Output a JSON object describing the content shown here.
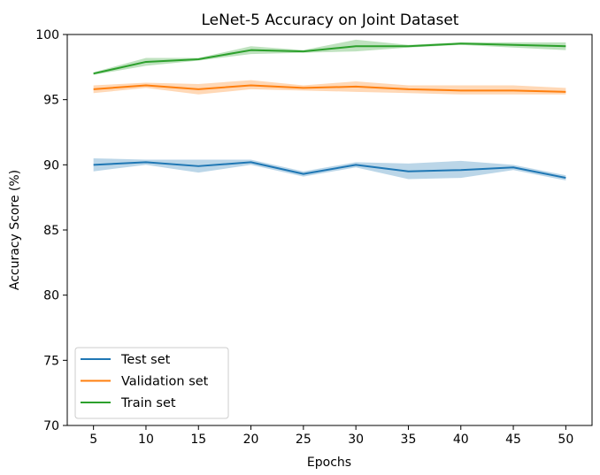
{
  "chart_data": {
    "type": "line",
    "title": "LeNet-5 Accuracy on Joint Dataset",
    "xlabel": "Epochs",
    "ylabel": "Accuracy Score (%)",
    "x": [
      5,
      10,
      15,
      20,
      25,
      30,
      35,
      40,
      45,
      50
    ],
    "xlim": [
      2.5,
      52.5
    ],
    "ylim": [
      70,
      100
    ],
    "xticks": [
      5,
      10,
      15,
      20,
      25,
      30,
      35,
      40,
      45,
      50
    ],
    "yticks": [
      70,
      75,
      80,
      85,
      90,
      95,
      100
    ],
    "grid": false,
    "legend_position": "lower-left",
    "series": [
      {
        "name": "Test set",
        "color": "#1f77b4",
        "values": [
          90.0,
          90.2,
          89.9,
          90.2,
          89.3,
          90.0,
          89.5,
          89.6,
          89.8,
          89.0
        ],
        "lower": [
          89.5,
          90.0,
          89.4,
          90.0,
          89.1,
          89.8,
          88.9,
          89.0,
          89.6,
          88.8
        ],
        "upper": [
          90.5,
          90.4,
          90.4,
          90.4,
          89.5,
          90.2,
          90.1,
          90.3,
          90.0,
          89.2
        ]
      },
      {
        "name": "Validation set",
        "color": "#ff7f0e",
        "values": [
          95.8,
          96.1,
          95.8,
          96.1,
          95.9,
          96.0,
          95.8,
          95.7,
          95.7,
          95.6
        ],
        "lower": [
          95.5,
          95.9,
          95.4,
          95.8,
          95.7,
          95.6,
          95.5,
          95.4,
          95.4,
          95.4
        ],
        "upper": [
          96.1,
          96.3,
          96.2,
          96.5,
          96.1,
          96.4,
          96.1,
          96.1,
          96.1,
          95.9
        ]
      },
      {
        "name": "Train set",
        "color": "#2ca02c",
        "values": [
          97.0,
          97.9,
          98.1,
          98.8,
          98.7,
          99.1,
          99.1,
          99.3,
          99.2,
          99.1
        ],
        "lower": [
          96.9,
          97.6,
          98.0,
          98.5,
          98.6,
          98.7,
          99.0,
          99.2,
          99.0,
          98.8
        ],
        "upper": [
          97.1,
          98.2,
          98.2,
          99.1,
          98.8,
          99.6,
          99.2,
          99.4,
          99.4,
          99.4
        ]
      }
    ]
  }
}
